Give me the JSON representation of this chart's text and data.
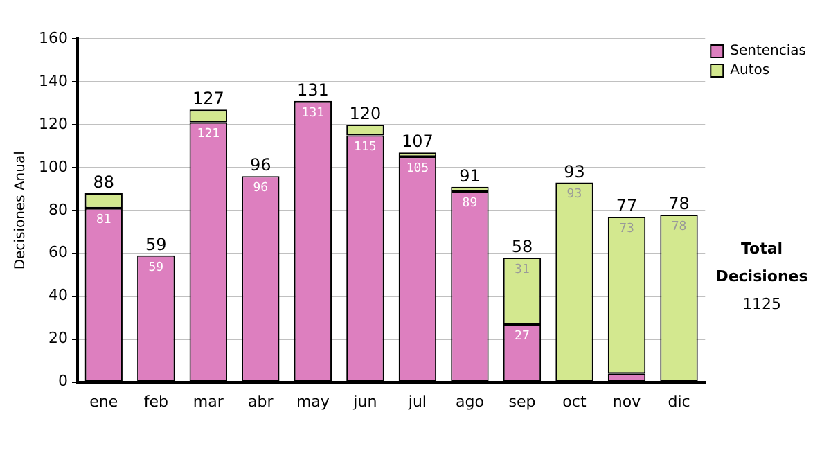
{
  "chart_data": {
    "type": "bar",
    "stacked": true,
    "ylabel": "Decisiones Anual",
    "categories": [
      "ene",
      "feb",
      "mar",
      "abr",
      "may",
      "jun",
      "jul",
      "ago",
      "sep",
      "oct",
      "nov",
      "dic"
    ],
    "series": [
      {
        "name": "Sentencias",
        "color": "#dd7fbf",
        "values": [
          81,
          59,
          121,
          96,
          131,
          115,
          105,
          89,
          27,
          0,
          4,
          0
        ],
        "value_labels": [
          "81",
          "59",
          "121",
          "96",
          "131",
          "115",
          "105",
          "89",
          "27",
          null,
          null,
          null
        ]
      },
      {
        "name": "Autos",
        "color": "#d3e88f",
        "values": [
          7,
          0,
          6,
          0,
          0,
          5,
          2,
          2,
          31,
          93,
          73,
          78
        ],
        "value_labels": [
          null,
          null,
          null,
          null,
          null,
          null,
          null,
          null,
          "31",
          "93",
          "73",
          "78"
        ]
      }
    ],
    "totals": [
      "88",
      "59",
      "127",
      "96",
      "131",
      "120",
      "107",
      "91",
      "58",
      "93",
      "77",
      "78"
    ],
    "ylim": [
      0,
      160
    ],
    "yticks": [
      0,
      20,
      40,
      60,
      80,
      100,
      120,
      140,
      160
    ],
    "grid": "y",
    "legend": "right",
    "annotations": [
      "Total Decisiones",
      "1125"
    ]
  }
}
